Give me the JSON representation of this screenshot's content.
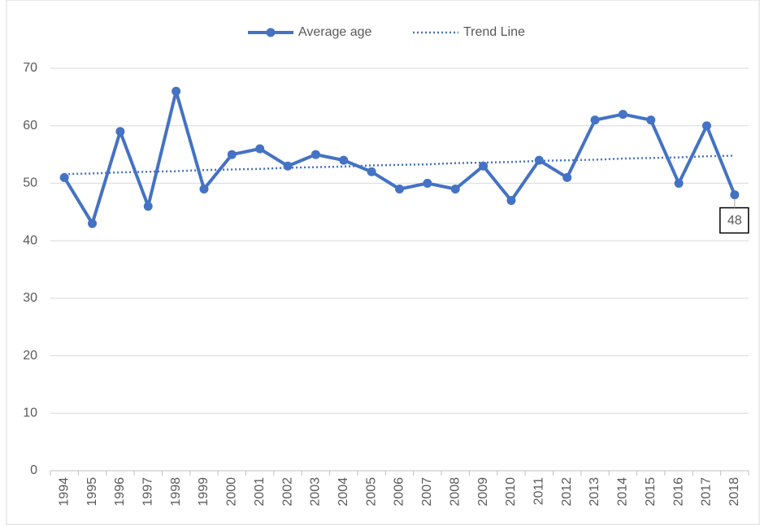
{
  "chart_data": {
    "type": "line",
    "categories": [
      "1994",
      "1995",
      "1996",
      "1997",
      "1998",
      "1999",
      "2000",
      "2001",
      "2002",
      "2003",
      "2004",
      "2005",
      "2006",
      "2007",
      "2008",
      "2009",
      "2010",
      "2011",
      "2012",
      "2013",
      "2014",
      "2015",
      "2016",
      "2017",
      "2018"
    ],
    "series": [
      {
        "name": "Average age",
        "color": "#4472c4",
        "style": "solid-markers",
        "values": [
          51,
          43,
          59,
          46,
          66,
          49,
          55,
          56,
          53,
          55,
          54,
          52,
          49,
          50,
          49,
          53,
          47,
          54,
          51,
          61,
          62,
          61,
          50,
          60,
          48
        ]
      },
      {
        "name": "Trend Line",
        "color": "#4472c4",
        "style": "dotted",
        "values": [
          51.6,
          51.7,
          51.9,
          52.0,
          52.1,
          52.3,
          52.4,
          52.5,
          52.7,
          52.8,
          52.9,
          53.1,
          53.2,
          53.3,
          53.5,
          53.6,
          53.7,
          53.9,
          54.0,
          54.1,
          54.3,
          54.4,
          54.5,
          54.7,
          54.8
        ]
      }
    ],
    "ylim": [
      0,
      70
    ],
    "yticks": [
      0,
      10,
      20,
      30,
      40,
      50,
      60,
      70
    ],
    "grid": true,
    "legend": "top"
  }
}
